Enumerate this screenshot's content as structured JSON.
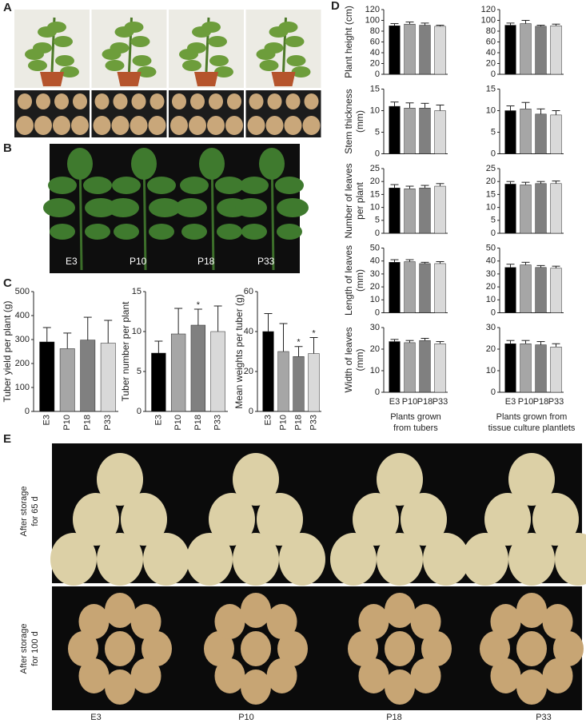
{
  "panel_labels": [
    "A",
    "B",
    "C",
    "D",
    "E"
  ],
  "panel_b_labels": [
    "E3",
    "P10",
    "P18",
    "P33"
  ],
  "panel_d_xlabels": [
    [
      "Plants grown",
      "from tubers"
    ],
    [
      "Plants grown from",
      "tissue culture plantlets"
    ]
  ],
  "panel_e": {
    "row_labels": [
      [
        "After storage",
        "for 65 d"
      ],
      [
        "After storage",
        "for 100 d"
      ]
    ],
    "column_labels": [
      "E3",
      "P10",
      "P18",
      "P33"
    ]
  },
  "chart_data": [
    {
      "type": "bar",
      "ylabel": [
        "Tuber yield per plant (g)"
      ],
      "categories": [
        "E3",
        "P10",
        "P18",
        "P33"
      ],
      "values": [
        290,
        262,
        298,
        285
      ],
      "errors": [
        60,
        65,
        95,
        95
      ],
      "colors": [
        "#000000",
        "#a6a6a6",
        "#808080",
        "#d9d9d9"
      ],
      "ylim": [
        0,
        500
      ],
      "yticks": [
        0,
        100,
        200,
        300,
        400,
        500
      ]
    },
    {
      "type": "bar",
      "ylabel": [
        "Tuber number per plant"
      ],
      "categories": [
        "E3",
        "P10",
        "P18",
        "P33"
      ],
      "values": [
        7.3,
        9.7,
        10.8,
        10.0
      ],
      "errors": [
        1.5,
        3.2,
        2.0,
        3.2
      ],
      "markers": [
        null,
        null,
        "*",
        null
      ],
      "colors": [
        "#000000",
        "#a6a6a6",
        "#808080",
        "#d9d9d9"
      ],
      "ylim": [
        0,
        15
      ],
      "yticks": [
        0,
        5,
        10,
        15
      ]
    },
    {
      "type": "bar",
      "ylabel": [
        "Mean weights per tuber (g)"
      ],
      "categories": [
        "E3",
        "P10",
        "P18",
        "P33"
      ],
      "values": [
        40,
        30,
        27.5,
        29
      ],
      "errors": [
        9,
        14,
        5,
        8
      ],
      "markers": [
        null,
        null,
        "*",
        "*"
      ],
      "colors": [
        "#000000",
        "#a6a6a6",
        "#808080",
        "#d9d9d9"
      ],
      "ylim": [
        0,
        60
      ],
      "yticks": [
        0,
        20,
        40,
        60
      ]
    },
    {
      "type": "bar",
      "ylabel": [
        "Plant height (cm)"
      ],
      "values": [
        90,
        93,
        91,
        89
      ],
      "errors": [
        4,
        4,
        4,
        2
      ],
      "colors": [
        "#000000",
        "#a6a6a6",
        "#808080",
        "#d9d9d9"
      ],
      "ylim": [
        0,
        120
      ],
      "yticks": [
        0,
        20,
        40,
        60,
        80,
        100,
        120
      ]
    },
    {
      "type": "bar",
      "values": [
        91,
        94,
        89,
        90
      ],
      "errors": [
        4,
        6,
        2,
        3
      ],
      "colors": [
        "#000000",
        "#a6a6a6",
        "#808080",
        "#d9d9d9"
      ],
      "ylim": [
        0,
        120
      ],
      "yticks": [
        0,
        20,
        40,
        60,
        80,
        100,
        120
      ]
    },
    {
      "type": "bar",
      "ylabel": [
        "Stem thickness",
        "(mm)"
      ],
      "values": [
        11,
        10.6,
        10.6,
        10
      ],
      "errors": [
        1,
        1.2,
        1.1,
        1.3
      ],
      "colors": [
        "#000000",
        "#a6a6a6",
        "#808080",
        "#d9d9d9"
      ],
      "ylim": [
        0,
        15
      ],
      "yticks": [
        0,
        5,
        10,
        15
      ]
    },
    {
      "type": "bar",
      "values": [
        10,
        10.4,
        9.2,
        9
      ],
      "errors": [
        1.1,
        1.5,
        1.2,
        1
      ],
      "colors": [
        "#000000",
        "#a6a6a6",
        "#808080",
        "#d9d9d9"
      ],
      "ylim": [
        0,
        15
      ],
      "yticks": [
        0,
        5,
        10,
        15
      ]
    },
    {
      "type": "bar",
      "ylabel": [
        "Number of leaves",
        "per plant"
      ],
      "values": [
        17.5,
        17.2,
        17.5,
        18.2
      ],
      "errors": [
        1.3,
        1,
        1,
        1
      ],
      "colors": [
        "#000000",
        "#a6a6a6",
        "#808080",
        "#d9d9d9"
      ],
      "ylim": [
        0,
        25
      ],
      "yticks": [
        0,
        5,
        10,
        15,
        20,
        25
      ]
    },
    {
      "type": "bar",
      "values": [
        19,
        18.7,
        19.2,
        19.2
      ],
      "errors": [
        1,
        1,
        0.8,
        1
      ],
      "colors": [
        "#000000",
        "#a6a6a6",
        "#808080",
        "#d9d9d9"
      ],
      "ylim": [
        0,
        25
      ],
      "yticks": [
        0,
        5,
        10,
        15,
        20,
        25
      ]
    },
    {
      "type": "bar",
      "ylabel": [
        "Length of leaves",
        "(mm)"
      ],
      "values": [
        39,
        39.5,
        38,
        38
      ],
      "errors": [
        2,
        1.5,
        1,
        1.5
      ],
      "colors": [
        "#000000",
        "#a6a6a6",
        "#808080",
        "#d9d9d9"
      ],
      "ylim": [
        0,
        50
      ],
      "yticks": [
        0,
        10,
        20,
        30,
        40,
        50
      ]
    },
    {
      "type": "bar",
      "values": [
        35,
        37,
        35,
        34.5
      ],
      "errors": [
        2.5,
        2,
        1.5,
        1.5
      ],
      "colors": [
        "#000000",
        "#a6a6a6",
        "#808080",
        "#d9d9d9"
      ],
      "ylim": [
        0,
        50
      ],
      "yticks": [
        0,
        10,
        20,
        30,
        40,
        50
      ]
    },
    {
      "type": "bar",
      "ylabel": [
        "Width of leaves",
        "(mm)"
      ],
      "categories": [
        "E3",
        "P10",
        "P18",
        "P33"
      ],
      "values": [
        23.5,
        23,
        24,
        22.5
      ],
      "errors": [
        1,
        1,
        1,
        1
      ],
      "colors": [
        "#000000",
        "#a6a6a6",
        "#808080",
        "#d9d9d9"
      ],
      "ylim": [
        0,
        30
      ],
      "yticks": [
        0,
        10,
        20,
        30
      ]
    },
    {
      "type": "bar",
      "categories": [
        "E3",
        "P10",
        "P18",
        "P33"
      ],
      "values": [
        22.5,
        22.5,
        22,
        21
      ],
      "errors": [
        1.5,
        1.5,
        1.5,
        1.5
      ],
      "colors": [
        "#000000",
        "#a6a6a6",
        "#808080",
        "#d9d9d9"
      ],
      "ylim": [
        0,
        30
      ],
      "yticks": [
        0,
        10,
        20,
        30
      ]
    }
  ]
}
